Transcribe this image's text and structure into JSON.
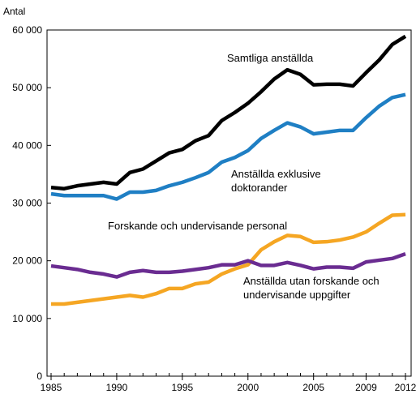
{
  "chart_data": {
    "type": "line",
    "y_label": "Antal",
    "x": [
      1985,
      1986,
      1987,
      1988,
      1989,
      1990,
      1991,
      1992,
      1993,
      1994,
      1995,
      1996,
      1997,
      1998,
      1999,
      2000,
      2001,
      2002,
      2003,
      2004,
      2005,
      2006,
      2007,
      2008,
      2009,
      2010,
      2011,
      2012
    ],
    "series": [
      {
        "name": "Samtliga anställda",
        "color": "#000000",
        "values": [
          32700,
          32500,
          33000,
          33300,
          33600,
          33300,
          35300,
          35900,
          37300,
          38700,
          39300,
          40800,
          41700,
          44300,
          45700,
          47300,
          49300,
          51500,
          53100,
          52300,
          50500,
          50600,
          50600,
          50300,
          52600,
          54800,
          57500,
          58900
        ]
      },
      {
        "name": "Anställda exklusive doktorander",
        "color": "#1f7fc4",
        "values": [
          31600,
          31300,
          31300,
          31300,
          31300,
          30700,
          31900,
          31900,
          32200,
          33000,
          33600,
          34400,
          35300,
          37100,
          37900,
          39100,
          41200,
          42600,
          43900,
          43200,
          42000,
          42300,
          42600,
          42600,
          44800,
          46800,
          48300,
          48800
        ]
      },
      {
        "name": "Forskande och undervisande personal",
        "color": "#f5a623",
        "values": [
          12500,
          12500,
          12800,
          13100,
          13400,
          13700,
          14000,
          13700,
          14300,
          15200,
          15200,
          16000,
          16300,
          17700,
          18600,
          19300,
          21900,
          23300,
          24400,
          24200,
          23200,
          23300,
          23600,
          24100,
          25000,
          26500,
          27900,
          28000
        ]
      },
      {
        "name": "Anställda utan forskande och undervisande uppgifter",
        "color": "#6a2c91",
        "values": [
          19100,
          18800,
          18500,
          18000,
          17700,
          17200,
          18000,
          18300,
          18000,
          18000,
          18200,
          18500,
          18800,
          19300,
          19300,
          20000,
          19200,
          19200,
          19700,
          19200,
          18600,
          18900,
          18900,
          18700,
          19800,
          20100,
          20400,
          21200
        ]
      }
    ],
    "xlim": [
      1985,
      2012
    ],
    "xticks": [
      1985,
      1990,
      1995,
      2000,
      2005,
      2009,
      2012
    ],
    "ylim": [
      0,
      60000
    ],
    "yticks": [
      {
        "value": 0,
        "label": "0"
      },
      {
        "value": 10000,
        "label": "10 000"
      },
      {
        "value": 20000,
        "label": "20 000"
      },
      {
        "value": 30000,
        "label": "30 000"
      },
      {
        "value": 40000,
        "label": "40 000"
      },
      {
        "value": 50000,
        "label": "50 000"
      },
      {
        "value": 60000,
        "label": "60 000"
      }
    ]
  }
}
